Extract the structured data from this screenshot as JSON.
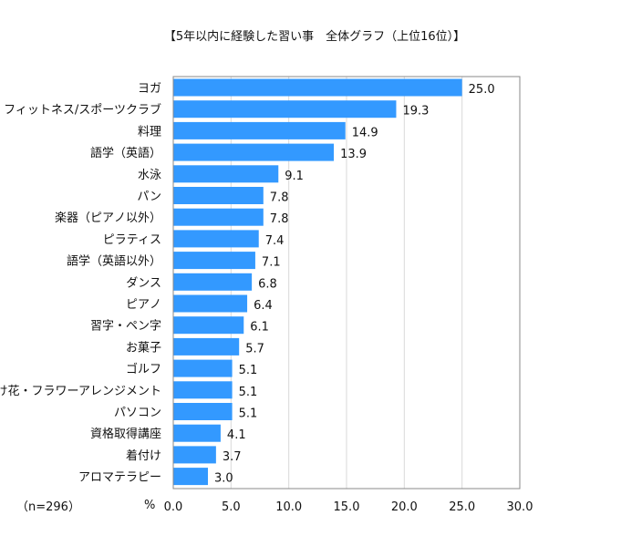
{
  "chart_data": {
    "type": "bar",
    "orientation": "horizontal",
    "title": "【5年以内に経験した習い事　全体グラフ（上位16位）】",
    "note": "（n=296）",
    "xlabel": "%",
    "xlim": [
      0,
      30
    ],
    "xticks": [
      "0.0",
      "5.0",
      "10.0",
      "15.0",
      "20.0",
      "25.0",
      "30.0"
    ],
    "grid": true,
    "bar_color": "#3399ff",
    "categories": [
      "ヨガ",
      "フィットネス/スポーツクラブ",
      "料理",
      "語学（英語）",
      "水泳",
      "パン",
      "楽器（ピアノ以外）",
      "ピラティス",
      "語学（英語以外）",
      "ダンス",
      "ピアノ",
      "習字・ペン字",
      "お菓子",
      "ゴルフ",
      "生け花・フラワーアレンジメント",
      "パソコン",
      "資格取得講座",
      "着付け",
      "アロマテラピー"
    ],
    "values": [
      25.0,
      19.3,
      14.9,
      13.9,
      9.1,
      7.8,
      7.8,
      7.4,
      7.1,
      6.8,
      6.4,
      6.1,
      5.7,
      5.1,
      5.1,
      5.1,
      4.1,
      3.7,
      3.0
    ],
    "data_labels": [
      "25.0",
      "19.3",
      "14.9",
      "13.9",
      "9.1",
      "7.8",
      "7.8",
      "7.4",
      "7.1",
      "6.8",
      "6.4",
      "6.1",
      "5.7",
      "5.1",
      "5.1",
      "5.1",
      "4.1",
      "3.7",
      "3.0"
    ]
  }
}
